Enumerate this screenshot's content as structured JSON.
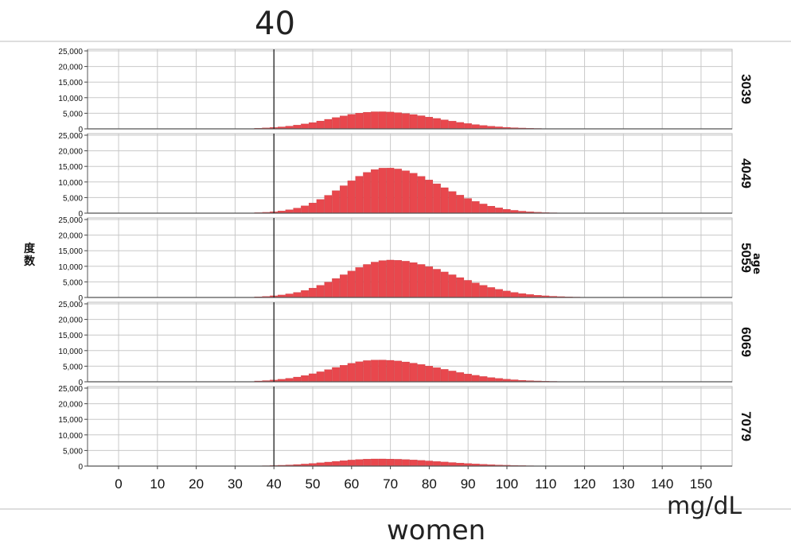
{
  "annotation_top": "40",
  "unit_label": "mg/dL",
  "footer_label": "women",
  "colors": {
    "bar": "#e8474d",
    "bar_edge": "#c23236",
    "grid": "#c8c8c8",
    "refline": "#222222"
  },
  "chart_data": {
    "type": "bar",
    "ylabel": "度数",
    "panel_axis_label": "age",
    "xticks": [
      0,
      10,
      20,
      30,
      40,
      50,
      60,
      70,
      80,
      90,
      100,
      110,
      120,
      130,
      140,
      150
    ],
    "xlim": [
      -8,
      158
    ],
    "yticks": [
      0,
      5000,
      10000,
      15000,
      20000,
      25000
    ],
    "ytick_labels": [
      "0",
      "5,000",
      "10,000",
      "15,000",
      "20,000",
      "25,000"
    ],
    "ylim": [
      0,
      25000
    ],
    "bin_width": 2,
    "reference_line_x": 40,
    "grid": true,
    "panels": [
      {
        "label": "3039",
        "peak": 5500,
        "mean": 67,
        "sd_left": 12,
        "sd_right": 15
      },
      {
        "label": "4049",
        "peak": 14500,
        "mean": 69,
        "sd_left": 11,
        "sd_right": 14
      },
      {
        "label": "5059",
        "peak": 12000,
        "mean": 70,
        "sd_left": 12,
        "sd_right": 16
      },
      {
        "label": "6069",
        "peak": 7000,
        "mean": 67,
        "sd_left": 12,
        "sd_right": 16
      },
      {
        "label": "7079",
        "peak": 2300,
        "mean": 67,
        "sd_left": 12,
        "sd_right": 16
      }
    ]
  }
}
